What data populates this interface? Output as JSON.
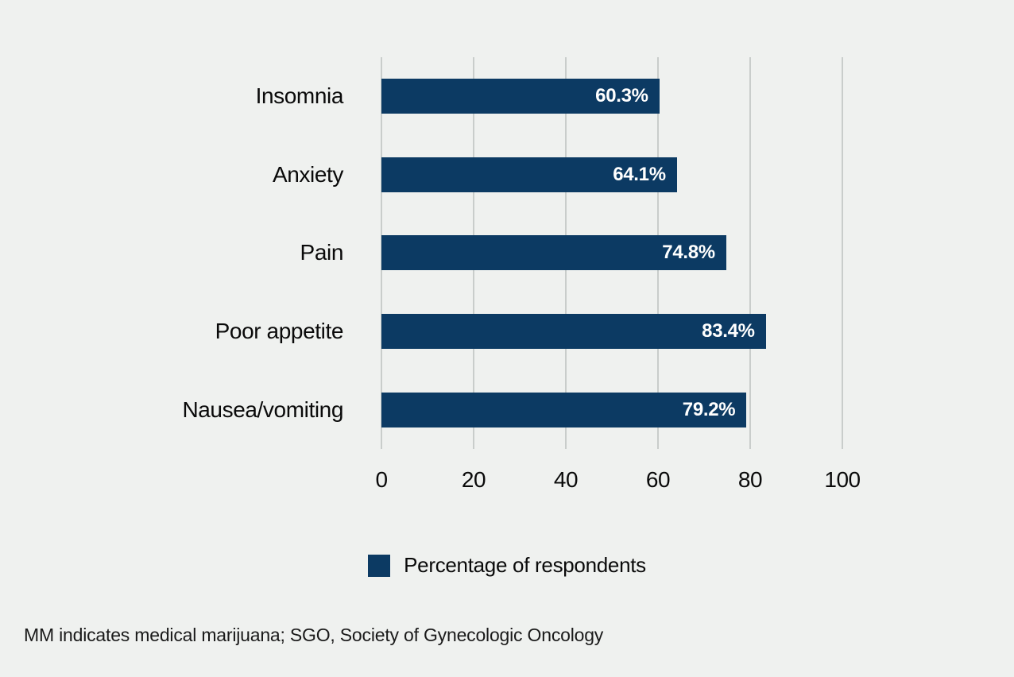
{
  "chart_data": {
    "type": "bar",
    "orientation": "horizontal",
    "categories": [
      "Insomnia",
      "Anxiety",
      "Pain",
      "Poor appetite",
      "Nausea/vomiting"
    ],
    "values": [
      60.3,
      64.1,
      74.8,
      83.4,
      79.2
    ],
    "value_labels": [
      "60.3%",
      "64.1%",
      "74.8%",
      "83.4%",
      "79.2%"
    ],
    "xticks": [
      "0",
      "20",
      "40",
      "60",
      "80",
      "100"
    ],
    "xlim": [
      0,
      100
    ],
    "xlabel": "",
    "ylabel": "",
    "title": "",
    "legend": [
      {
        "label": "Percentage of respondents",
        "color": "#0c3a63"
      }
    ],
    "legend_position": "bottom-center",
    "grid": "vertical-only",
    "bar_color": "#0c3a63",
    "value_label_color": "#ffffff"
  },
  "footnote": "MM indicates medical marijuana; SGO, Society of Gynecologic Oncology",
  "colors": {
    "background": "#eff1ef",
    "gridline": "#c9cdcb",
    "bar": "#0c3a63",
    "text": "#0a0a0a"
  }
}
